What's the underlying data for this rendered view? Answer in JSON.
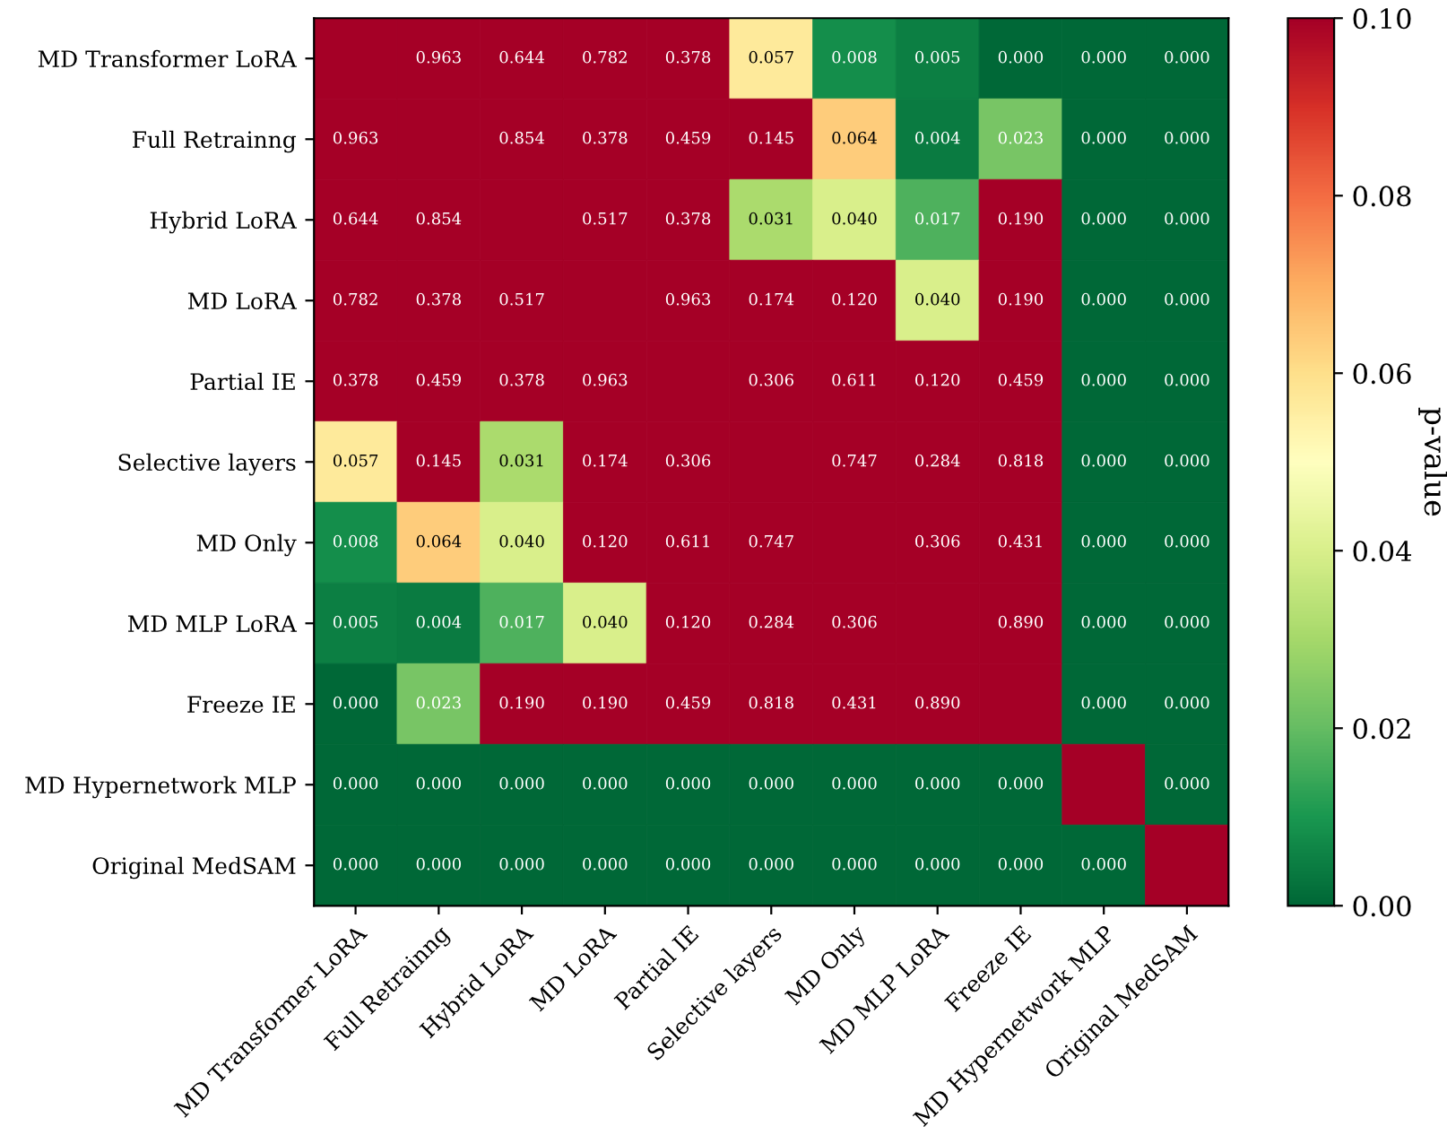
{
  "chart_data": {
    "type": "heatmap",
    "categories": [
      "MD Transformer LoRA",
      "Full Retrainng",
      "Hybrid LoRA",
      "MD LoRA",
      "Partial IE",
      "Selective layers",
      "MD Only",
      "MD MLP LoRA",
      "Freeze IE",
      "MD Hypernetwork MLP",
      "Original MedSAM"
    ],
    "y_categories": [
      "MD Transformer LoRA",
      "Full Retrainng",
      "Hybrid LoRA",
      "MD LoRA",
      "Partial IE",
      "Selective layers",
      "MD Only",
      "MD MLP LoRA",
      "Freeze IE",
      "MD Hypernetwork MLP",
      "Original MedSAM"
    ],
    "cells": [
      [
        1,
        0.963,
        0.644,
        0.782,
        0.378,
        0.057,
        0.008,
        0.005,
        0.0,
        0.0,
        0.0
      ],
      [
        0.963,
        1,
        0.854,
        0.378,
        0.459,
        0.145,
        0.064,
        0.004,
        0.023,
        0.0,
        0.0
      ],
      [
        0.644,
        0.854,
        1,
        0.517,
        0.378,
        0.031,
        0.04,
        0.017,
        0.19,
        0.0,
        0.0
      ],
      [
        0.782,
        0.378,
        0.517,
        1,
        0.963,
        0.174,
        0.12,
        0.04,
        0.19,
        0.0,
        0.0
      ],
      [
        0.378,
        0.459,
        0.378,
        0.963,
        1,
        0.306,
        0.611,
        0.12,
        0.459,
        0.0,
        0.0
      ],
      [
        0.057,
        0.145,
        0.031,
        0.174,
        0.306,
        1,
        0.747,
        0.284,
        0.818,
        0.0,
        0.0
      ],
      [
        0.008,
        0.064,
        0.04,
        0.12,
        0.611,
        0.747,
        1,
        0.306,
        0.431,
        0.0,
        0.0
      ],
      [
        0.005,
        0.004,
        0.017,
        0.04,
        0.12,
        0.284,
        0.306,
        1,
        0.89,
        0.0,
        0.0
      ],
      [
        0.0,
        0.023,
        0.19,
        0.19,
        0.459,
        0.818,
        0.431,
        0.89,
        1,
        0.0,
        0.0
      ],
      [
        0.0,
        0.0,
        0.0,
        0.0,
        0.0,
        0.0,
        0.0,
        0.0,
        0.0,
        1,
        0.0
      ],
      [
        0.0,
        0.0,
        0.0,
        0.0,
        0.0,
        0.0,
        0.0,
        0.0,
        0.0,
        0.0,
        1
      ]
    ],
    "cell_labels": [
      [
        null,
        "0.963",
        "0.644",
        "0.782",
        "0.378",
        "0.057",
        "0.008",
        "0.005",
        "0.000",
        "0.000",
        "0.000"
      ],
      [
        "0.963",
        null,
        "0.854",
        "0.378",
        "0.459",
        "0.145",
        "0.064",
        "0.004",
        "0.023",
        "0.000",
        "0.000"
      ],
      [
        "0.644",
        "0.854",
        null,
        "0.517",
        "0.378",
        "0.031",
        "0.040",
        "0.017",
        "0.190",
        "0.000",
        "0.000"
      ],
      [
        "0.782",
        "0.378",
        "0.517",
        null,
        "0.963",
        "0.174",
        "0.120",
        "0.040",
        "0.190",
        "0.000",
        "0.000"
      ],
      [
        "0.378",
        "0.459",
        "0.378",
        "0.963",
        null,
        "0.306",
        "0.611",
        "0.120",
        "0.459",
        "0.000",
        "0.000"
      ],
      [
        "0.057",
        "0.145",
        "0.031",
        "0.174",
        "0.306",
        null,
        "0.747",
        "0.284",
        "0.818",
        "0.000",
        "0.000"
      ],
      [
        "0.008",
        "0.064",
        "0.040",
        "0.120",
        "0.611",
        "0.747",
        null,
        "0.306",
        "0.431",
        "0.000",
        "0.000"
      ],
      [
        "0.005",
        "0.004",
        "0.017",
        "0.040",
        "0.120",
        "0.284",
        "0.306",
        null,
        "0.890",
        "0.000",
        "0.000"
      ],
      [
        "0.000",
        "0.023",
        "0.190",
        "0.190",
        "0.459",
        "0.818",
        "0.431",
        "0.890",
        null,
        "0.000",
        "0.000"
      ],
      [
        "0.000",
        "0.000",
        "0.000",
        "0.000",
        "0.000",
        "0.000",
        "0.000",
        "0.000",
        "0.000",
        null,
        "0.000"
      ],
      [
        "0.000",
        "0.000",
        "0.000",
        "0.000",
        "0.000",
        "0.000",
        "0.000",
        "0.000",
        "0.000",
        "0.000",
        null
      ]
    ],
    "clim": [
      0,
      0.1
    ],
    "cticks": [
      {
        "value": 0,
        "label": "0.00"
      },
      {
        "value": 0.02,
        "label": "0.02"
      },
      {
        "value": 0.04,
        "label": "0.04"
      },
      {
        "value": 0.06,
        "label": "0.06"
      },
      {
        "value": 0.08,
        "label": "0.08"
      },
      {
        "value": 0.1,
        "label": "0.10"
      }
    ],
    "clabel": "p-value",
    "grid": false
  }
}
